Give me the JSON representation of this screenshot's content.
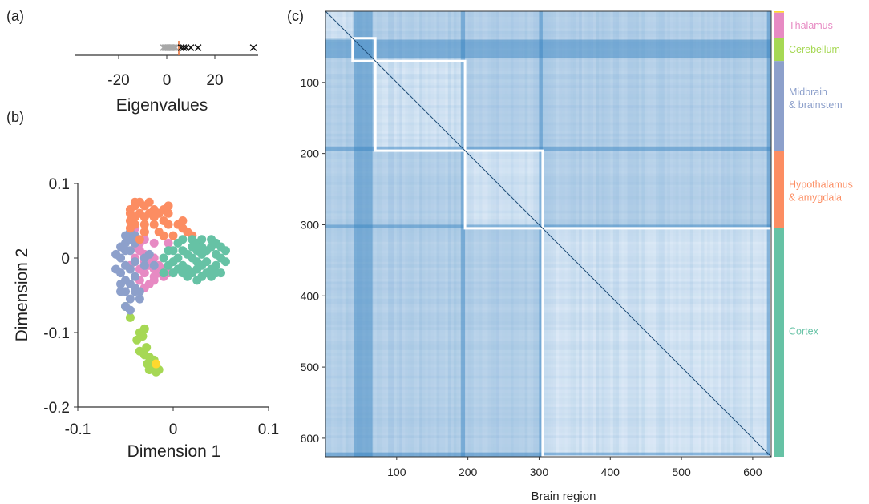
{
  "panels": {
    "a": "(a)",
    "b": "(b)",
    "c": "(c)"
  },
  "colors": {
    "thalamus": "#e78ac3",
    "cerebellum": "#a6d854",
    "midbrain": "#8da0cb",
    "hypothalamus": "#fc8d62",
    "cortex": "#66c2a5",
    "other": "#ffd92f",
    "matrix_light": "#eaf2fb",
    "matrix_dark": "#2f7fbf"
  },
  "chart_data": [
    {
      "type": "scatter",
      "panel": "a",
      "xlabel": "Eigenvalues",
      "ylabel": "",
      "xlim": [
        -38,
        38
      ],
      "xticks": [
        "-20",
        "0",
        "20"
      ],
      "xtick_values": [
        -20,
        0,
        20
      ],
      "threshold": 5,
      "bulk_eigenvalues": [
        -1.5,
        -0.8,
        -0.3,
        0.1,
        0.5,
        0.9,
        1.3,
        1.8,
        2.2,
        2.7,
        3.2,
        3.8
      ],
      "outlier_eigenvalues": [
        6,
        7,
        8,
        10,
        13,
        36
      ],
      "bulk_color": "#a8a8a8",
      "threshold_color": "#e8743b",
      "outlier_color": "#111111"
    },
    {
      "type": "scatter",
      "panel": "b",
      "xlabel": "Dimension 1",
      "ylabel": "Dimension 2",
      "xlim": [
        -0.1,
        0.1
      ],
      "ylim": [
        -0.2,
        0.1
      ],
      "xticks": [
        "-0.1",
        "0",
        "0.1"
      ],
      "yticks": [
        "0.1",
        "0",
        "-0.1",
        "-0.2"
      ],
      "series": [
        {
          "name": "Thalamus",
          "color": "#e78ac3",
          "points": [
            [
              -0.03,
              -0.005
            ],
            [
              -0.025,
              -0.01
            ],
            [
              -0.02,
              -0.015
            ],
            [
              -0.015,
              -0.02
            ],
            [
              -0.01,
              -0.025
            ],
            [
              -0.02,
              -0.03
            ],
            [
              -0.03,
              -0.02
            ],
            [
              -0.035,
              -0.03
            ],
            [
              -0.03,
              -0.04
            ],
            [
              -0.025,
              -0.035
            ],
            [
              -0.04,
              0.015
            ],
            [
              -0.035,
              0.01
            ],
            [
              -0.03,
              0.005
            ],
            [
              -0.04,
              0.0
            ],
            [
              -0.045,
              -0.01
            ],
            [
              -0.02,
              0.0
            ],
            [
              -0.015,
              -0.01
            ],
            [
              -0.01,
              -0.015
            ],
            [
              -0.005,
              -0.02
            ],
            [
              -0.02,
              -0.025
            ],
            [
              -0.025,
              -0.005
            ],
            [
              -0.035,
              -0.015
            ],
            [
              -0.04,
              0.04
            ],
            [
              -0.03,
              0.035
            ],
            [
              -0.005,
              0.02
            ],
            [
              -0.045,
              0.03
            ],
            [
              -0.03,
              0.025
            ],
            [
              -0.02,
              0.02
            ],
            [
              -0.035,
              0.02
            ],
            [
              -0.04,
              0.025
            ]
          ]
        },
        {
          "name": "Cerebellum",
          "color": "#a6d854",
          "points": [
            [
              -0.05,
              -0.065
            ],
            [
              -0.045,
              -0.08
            ],
            [
              -0.035,
              -0.1
            ],
            [
              -0.03,
              -0.095
            ],
            [
              -0.032,
              -0.105
            ],
            [
              -0.038,
              -0.11
            ],
            [
              -0.035,
              -0.125
            ],
            [
              -0.03,
              -0.13
            ],
            [
              -0.028,
              -0.12
            ],
            [
              -0.025,
              -0.133
            ],
            [
              -0.022,
              -0.14
            ],
            [
              -0.02,
              -0.145
            ],
            [
              -0.025,
              -0.15
            ],
            [
              -0.018,
              -0.153
            ],
            [
              -0.015,
              -0.15
            ],
            [
              -0.02,
              -0.137
            ],
            [
              -0.027,
              -0.142
            ]
          ]
        },
        {
          "name": "Midbrain & brainstem",
          "color": "#8da0cb",
          "points": [
            [
              -0.05,
              0.02
            ],
            [
              -0.05,
              0.01
            ],
            [
              -0.055,
              0.0
            ],
            [
              -0.05,
              -0.01
            ],
            [
              -0.055,
              -0.02
            ],
            [
              -0.05,
              -0.03
            ],
            [
              -0.045,
              -0.035
            ],
            [
              -0.04,
              -0.04
            ],
            [
              -0.05,
              -0.045
            ],
            [
              -0.045,
              -0.055
            ],
            [
              -0.05,
              -0.065
            ],
            [
              -0.045,
              0.025
            ],
            [
              -0.04,
              0.02
            ],
            [
              -0.045,
              0.01
            ],
            [
              -0.04,
              -0.005
            ],
            [
              -0.045,
              -0.015
            ],
            [
              -0.04,
              -0.025
            ],
            [
              -0.035,
              -0.045
            ],
            [
              -0.055,
              0.015
            ],
            [
              -0.06,
              0.005
            ],
            [
              -0.06,
              -0.015
            ],
            [
              -0.055,
              -0.035
            ],
            [
              -0.05,
              0.03
            ],
            [
              -0.045,
              0.035
            ],
            [
              -0.04,
              0.03
            ],
            [
              -0.035,
              -0.055
            ],
            [
              -0.025,
              0.005
            ],
            [
              -0.03,
              0.0
            ],
            [
              -0.03,
              -0.01
            ],
            [
              -0.055,
              -0.045
            ],
            [
              -0.04,
              -0.045
            ],
            [
              -0.02,
              -0.01
            ],
            [
              -0.045,
              -0.07
            ]
          ]
        },
        {
          "name": "Hypothalamus & amygdala",
          "color": "#fc8d62",
          "points": [
            [
              -0.045,
              0.065
            ],
            [
              -0.04,
              0.07
            ],
            [
              -0.035,
              0.075
            ],
            [
              -0.03,
              0.07
            ],
            [
              -0.025,
              0.075
            ],
            [
              -0.02,
              0.065
            ],
            [
              -0.015,
              0.06
            ],
            [
              -0.01,
              0.065
            ],
            [
              -0.005,
              0.06
            ],
            [
              -0.045,
              0.05
            ],
            [
              -0.04,
              0.055
            ],
            [
              -0.035,
              0.06
            ],
            [
              -0.03,
              0.055
            ],
            [
              -0.025,
              0.06
            ],
            [
              -0.02,
              0.055
            ],
            [
              -0.04,
              0.045
            ],
            [
              -0.03,
              0.045
            ],
            [
              -0.02,
              0.045
            ],
            [
              -0.045,
              0.04
            ],
            [
              -0.01,
              0.05
            ],
            [
              -0.005,
              0.045
            ],
            [
              0.005,
              0.045
            ],
            [
              0.01,
              0.04
            ],
            [
              0.015,
              0.035
            ],
            [
              0.02,
              0.03
            ],
            [
              -0.01,
              0.03
            ],
            [
              0.0,
              0.03
            ],
            [
              0.01,
              0.05
            ],
            [
              -0.03,
              0.035
            ],
            [
              -0.015,
              0.035
            ],
            [
              -0.035,
              0.025
            ],
            [
              -0.045,
              0.06
            ],
            [
              -0.04,
              0.075
            ],
            [
              -0.005,
              0.07
            ]
          ]
        },
        {
          "name": "Cortex",
          "color": "#66c2a5",
          "points": [
            [
              0.01,
              0.01
            ],
            [
              0.015,
              0.005
            ],
            [
              0.02,
              0.0
            ],
            [
              0.025,
              -0.005
            ],
            [
              0.03,
              0.005
            ],
            [
              0.035,
              0.01
            ],
            [
              0.04,
              0.015
            ],
            [
              0.045,
              0.005
            ],
            [
              0.05,
              0.0
            ],
            [
              0.055,
              -0.005
            ],
            [
              0.01,
              -0.01
            ],
            [
              0.015,
              -0.015
            ],
            [
              0.02,
              -0.02
            ],
            [
              0.025,
              -0.015
            ],
            [
              0.03,
              -0.01
            ],
            [
              0.035,
              -0.02
            ],
            [
              0.04,
              -0.015
            ],
            [
              0.045,
              -0.01
            ],
            [
              0.05,
              -0.02
            ],
            [
              0.005,
              0.0
            ],
            [
              0.0,
              -0.005
            ],
            [
              -0.005,
              -0.01
            ],
            [
              0.005,
              0.02
            ],
            [
              0.01,
              0.025
            ],
            [
              0.02,
              0.025
            ],
            [
              0.025,
              0.02
            ],
            [
              0.03,
              0.025
            ],
            [
              0.04,
              0.025
            ],
            [
              0.035,
              -0.005
            ],
            [
              0.02,
              0.015
            ],
            [
              0.03,
              -0.025
            ],
            [
              0.015,
              -0.025
            ],
            [
              0.045,
              0.02
            ],
            [
              0.055,
              0.01
            ],
            [
              0.0,
              0.01
            ],
            [
              -0.01,
              0.0
            ],
            [
              0.01,
              -0.02
            ],
            [
              0.025,
              0.01
            ],
            [
              0.04,
              -0.025
            ],
            [
              0.05,
              0.015
            ],
            [
              0.045,
              -0.02
            ],
            [
              0.005,
              -0.015
            ],
            [
              0.0,
              -0.02
            ],
            [
              0.03,
              0.015
            ],
            [
              -0.005,
              0.01
            ],
            [
              -0.01,
              -0.02
            ],
            [
              0.025,
              -0.03
            ]
          ]
        },
        {
          "name": "",
          "color": "#ffd92f",
          "points": [
            [
              -0.018,
              -0.142
            ]
          ]
        }
      ]
    },
    {
      "type": "heatmap",
      "panel": "c",
      "xlabel": "Brain region",
      "ylabel": "",
      "xlim": [
        0,
        626
      ],
      "ylim": [
        0,
        626
      ],
      "xticks": [
        "100",
        "200",
        "300",
        "400",
        "500",
        "600"
      ],
      "yticks": [
        "100",
        "200",
        "300",
        "400",
        "500",
        "600"
      ],
      "tick_values": [
        100,
        200,
        300,
        400,
        500,
        600
      ],
      "module_boundaries": [
        0,
        38,
        70,
        196,
        305,
        626
      ],
      "rows_per_strip": 4,
      "module_strip_colors": [
        "#ffd92f",
        "#e78ac3",
        "#a6d854",
        "#8da0cb",
        "#fc8d62",
        "#66c2a5"
      ],
      "module_strip_ranges": [
        [
          0,
          2
        ],
        [
          2,
          38
        ],
        [
          38,
          70
        ],
        [
          70,
          196
        ],
        [
          196,
          305
        ],
        [
          305,
          626
        ]
      ],
      "dark_bands": [
        [
          40,
          66
        ],
        [
          190,
          196
        ],
        [
          300,
          305
        ],
        [
          620,
          626
        ]
      ],
      "region_labels": [
        {
          "text": "Thalamus",
          "center": 20,
          "color": "#e78ac3"
        },
        {
          "text": "Cerebellum",
          "center": 54,
          "color": "#a6d854"
        },
        {
          "lines": [
            "Midbrain",
            "& brainstem"
          ],
          "center": 123,
          "color": "#8da0cb"
        },
        {
          "lines": [
            "Hypothalamus",
            "& amygdala"
          ],
          "center": 253,
          "color": "#fc8d62"
        },
        {
          "text": "Cortex",
          "center": 450,
          "color": "#66c2a5"
        }
      ]
    }
  ]
}
